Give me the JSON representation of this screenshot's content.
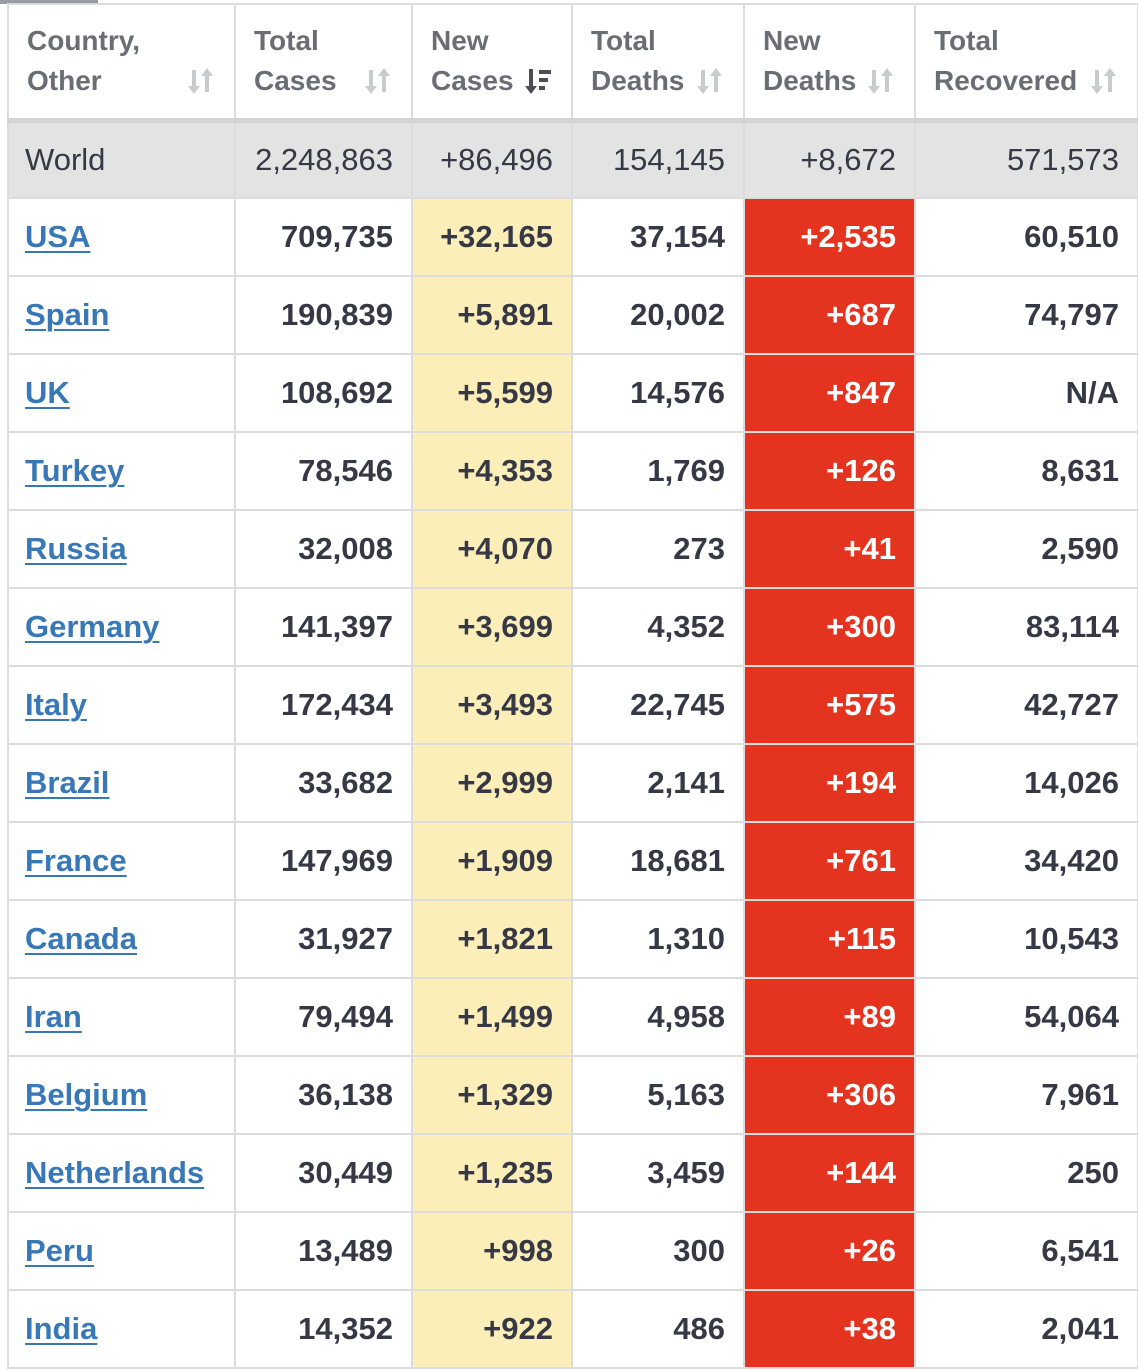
{
  "colors": {
    "new_cases_bg": "#fbeeb8",
    "new_deaths_bg": "#e4331f",
    "link": "#3878b6",
    "world_row_bg": "#e3e3e3"
  },
  "headers": [
    {
      "line1": "Country,",
      "line2": "Other",
      "sort_icon": "sort-neutral-icon"
    },
    {
      "line1": "Total",
      "line2": "Cases",
      "sort_icon": "sort-neutral-icon"
    },
    {
      "line1": "New",
      "line2": "Cases",
      "sort_icon": "sort-descending-icon"
    },
    {
      "line1": "Total",
      "line2": "Deaths",
      "sort_icon": "sort-neutral-icon"
    },
    {
      "line1": "New",
      "line2": "Deaths",
      "sort_icon": "sort-neutral-icon"
    },
    {
      "line1": "Total",
      "line2": "Recovered",
      "sort_icon": "sort-neutral-icon"
    }
  ],
  "world": {
    "country": "World",
    "total_cases": "2,248,863",
    "new_cases": "+86,496",
    "total_deaths": "154,145",
    "new_deaths": "+8,672",
    "total_recovered": "571,573"
  },
  "rows": [
    {
      "country": "USA",
      "total_cases": "709,735",
      "new_cases": "+32,165",
      "total_deaths": "37,154",
      "new_deaths": "+2,535",
      "total_recovered": "60,510"
    },
    {
      "country": "Spain",
      "total_cases": "190,839",
      "new_cases": "+5,891",
      "total_deaths": "20,002",
      "new_deaths": "+687",
      "total_recovered": "74,797"
    },
    {
      "country": "UK",
      "total_cases": "108,692",
      "new_cases": "+5,599",
      "total_deaths": "14,576",
      "new_deaths": "+847",
      "total_recovered": "N/A"
    },
    {
      "country": "Turkey",
      "total_cases": "78,546",
      "new_cases": "+4,353",
      "total_deaths": "1,769",
      "new_deaths": "+126",
      "total_recovered": "8,631"
    },
    {
      "country": "Russia",
      "total_cases": "32,008",
      "new_cases": "+4,070",
      "total_deaths": "273",
      "new_deaths": "+41",
      "total_recovered": "2,590"
    },
    {
      "country": "Germany",
      "total_cases": "141,397",
      "new_cases": "+3,699",
      "total_deaths": "4,352",
      "new_deaths": "+300",
      "total_recovered": "83,114"
    },
    {
      "country": "Italy",
      "total_cases": "172,434",
      "new_cases": "+3,493",
      "total_deaths": "22,745",
      "new_deaths": "+575",
      "total_recovered": "42,727"
    },
    {
      "country": "Brazil",
      "total_cases": "33,682",
      "new_cases": "+2,999",
      "total_deaths": "2,141",
      "new_deaths": "+194",
      "total_recovered": "14,026"
    },
    {
      "country": "France",
      "total_cases": "147,969",
      "new_cases": "+1,909",
      "total_deaths": "18,681",
      "new_deaths": "+761",
      "total_recovered": "34,420"
    },
    {
      "country": "Canada",
      "total_cases": "31,927",
      "new_cases": "+1,821",
      "total_deaths": "1,310",
      "new_deaths": "+115",
      "total_recovered": "10,543"
    },
    {
      "country": "Iran",
      "total_cases": "79,494",
      "new_cases": "+1,499",
      "total_deaths": "4,958",
      "new_deaths": "+89",
      "total_recovered": "54,064"
    },
    {
      "country": "Belgium",
      "total_cases": "36,138",
      "new_cases": "+1,329",
      "total_deaths": "5,163",
      "new_deaths": "+306",
      "total_recovered": "7,961"
    },
    {
      "country": "Netherlands",
      "total_cases": "30,449",
      "new_cases": "+1,235",
      "total_deaths": "3,459",
      "new_deaths": "+144",
      "total_recovered": "250"
    },
    {
      "country": "Peru",
      "total_cases": "13,489",
      "new_cases": "+998",
      "total_deaths": "300",
      "new_deaths": "+26",
      "total_recovered": "6,541"
    },
    {
      "country": "India",
      "total_cases": "14,352",
      "new_cases": "+922",
      "total_deaths": "486",
      "new_deaths": "+38",
      "total_recovered": "2,041"
    }
  ]
}
